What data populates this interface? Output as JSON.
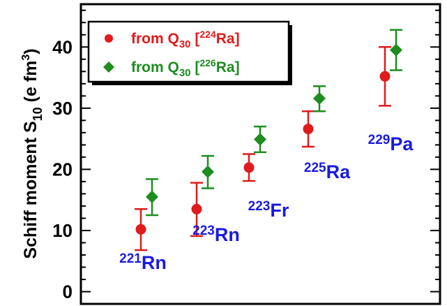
{
  "chart_data": {
    "type": "scatter",
    "title": "",
    "ylabel_main": "Schiff moment S",
    "ylabel_sub": "10",
    "ylabel_unit_pre": " (e fm",
    "ylabel_unit_sup": "3",
    "ylabel_unit_post": ")",
    "ylim": [
      -2,
      47
    ],
    "yticks": [
      "0",
      "10",
      "20",
      "30",
      "40"
    ],
    "ytick_values": [
      0,
      10,
      20,
      30,
      40
    ],
    "legend_placement": "top-left",
    "nuclei": [
      {
        "mass": "221",
        "symbol": "Rn"
      },
      {
        "mass": "223",
        "symbol": "Rn"
      },
      {
        "mass": "223",
        "symbol": "Fr"
      },
      {
        "mass": "225",
        "symbol": "Ra"
      },
      {
        "mass": "229",
        "symbol": "Pa"
      }
    ],
    "series": [
      {
        "legend_pre": "from Q",
        "legend_sub": "30",
        "legend_mid": " [",
        "legend_sup": "224",
        "legend_post": "Ra]",
        "color": "#e01b1b",
        "marker": "circle",
        "values": [
          10.2,
          13.5,
          20.3,
          26.6,
          35.2
        ],
        "err_low": [
          3.4,
          4.4,
          2.2,
          2.9,
          4.8
        ],
        "err_high": [
          3.3,
          4.3,
          2.2,
          2.9,
          4.8
        ]
      },
      {
        "legend_pre": "from Q",
        "legend_sub": "30",
        "legend_mid": " [",
        "legend_sup": "226",
        "legend_post": "Ra]",
        "color": "#1e8c1e",
        "marker": "diamond",
        "values": [
          15.5,
          19.6,
          24.9,
          31.6,
          39.5
        ],
        "err_low": [
          3.0,
          2.7,
          2.1,
          2.1,
          3.3
        ],
        "err_high": [
          2.9,
          2.6,
          2.1,
          2.0,
          3.3
        ]
      }
    ]
  }
}
